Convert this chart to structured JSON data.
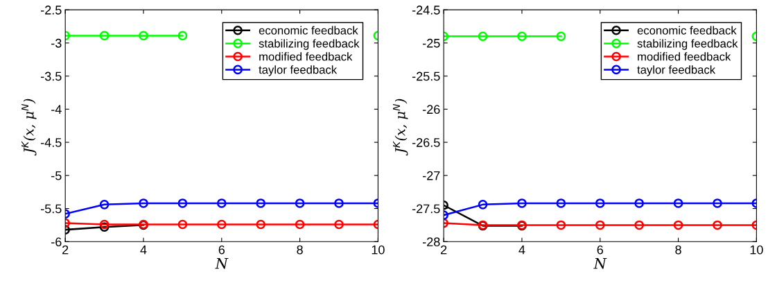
{
  "chart_data": [
    {
      "type": "line",
      "xlabel": "N",
      "ylabel": "J$^{K}$(x, μ$^{N}$)",
      "x": [
        2,
        3,
        4,
        5,
        6,
        7,
        8,
        9,
        10
      ],
      "xlim": [
        2,
        10
      ],
      "xticks": [
        2,
        4,
        6,
        8,
        10
      ],
      "ylim": [
        -6,
        -2.5
      ],
      "yticks": [
        -6,
        -5.5,
        -5,
        -4.5,
        -4,
        -3.5,
        -3,
        -2.5
      ],
      "marker": "circle",
      "legend": "top right",
      "grid": false,
      "series": [
        {
          "name": "economic feedback",
          "color": "#000000",
          "values": [
            -5.82,
            -5.78,
            -5.75,
            null,
            null,
            null,
            null,
            null,
            null
          ]
        },
        {
          "name": "stabilizing feedback",
          "color": "#00ff00",
          "values": [
            -2.89,
            -2.89,
            -2.89,
            -2.89,
            null,
            null,
            null,
            null,
            -2.89
          ]
        },
        {
          "name": "modified feedback",
          "color": "#ff0000",
          "values": [
            -5.72,
            -5.74,
            -5.74,
            -5.74,
            -5.74,
            -5.74,
            -5.74,
            -5.74,
            -5.74
          ]
        },
        {
          "name": "taylor feedback",
          "color": "#0000ff",
          "values": [
            -5.58,
            -5.44,
            -5.42,
            -5.42,
            -5.42,
            -5.42,
            -5.42,
            -5.42,
            -5.42
          ]
        }
      ]
    },
    {
      "type": "line",
      "xlabel": "N",
      "ylabel": "J$^{K}$(x, μ$^{N}$)",
      "x": [
        2,
        3,
        4,
        5,
        6,
        7,
        8,
        9,
        10
      ],
      "xlim": [
        2,
        10
      ],
      "xticks": [
        2,
        4,
        6,
        8,
        10
      ],
      "ylim": [
        -28,
        -24.5
      ],
      "yticks": [
        -28,
        -27.5,
        -27,
        -26.5,
        -26,
        -25.5,
        -25,
        -24.5
      ],
      "marker": "circle",
      "legend": "top right",
      "grid": false,
      "series": [
        {
          "name": "economic feedback",
          "color": "#000000",
          "values": [
            -27.45,
            -27.76,
            -27.76,
            null,
            null,
            null,
            null,
            null,
            null
          ]
        },
        {
          "name": "stabilizing feedback",
          "color": "#00ff00",
          "values": [
            -24.9,
            -24.9,
            -24.9,
            -24.9,
            null,
            null,
            null,
            null,
            -24.9
          ]
        },
        {
          "name": "modified feedback",
          "color": "#ff0000",
          "values": [
            -27.72,
            -27.75,
            -27.75,
            -27.75,
            -27.75,
            -27.75,
            -27.75,
            -27.75,
            -27.75
          ]
        },
        {
          "name": "taylor feedback",
          "color": "#0000ff",
          "values": [
            -27.6,
            -27.44,
            -27.42,
            -27.42,
            -27.42,
            -27.42,
            -27.42,
            -27.42,
            -27.42
          ]
        }
      ]
    }
  ]
}
